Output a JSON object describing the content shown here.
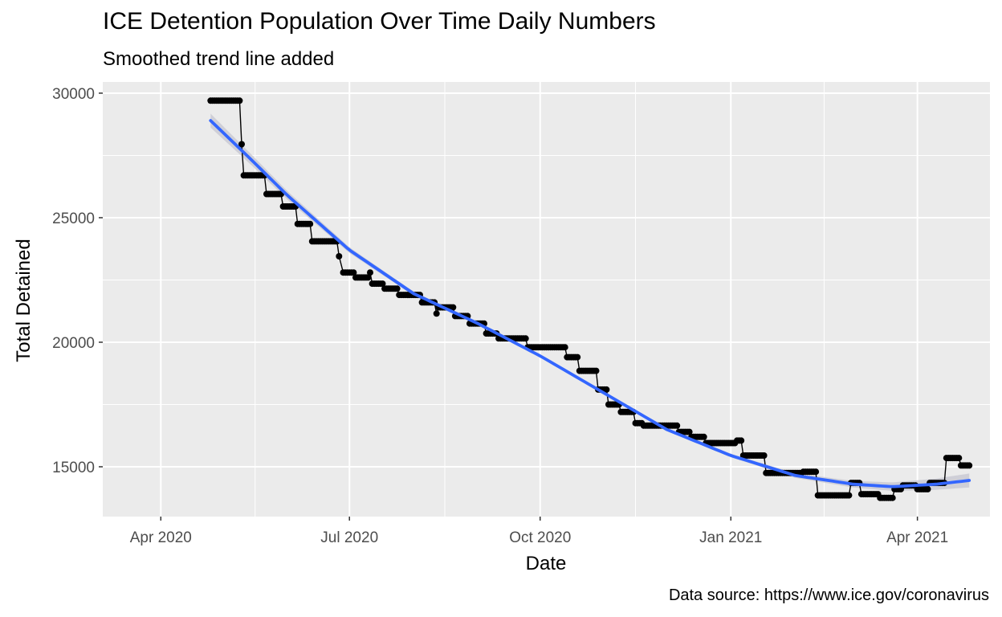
{
  "chart_data": {
    "type": "line",
    "title": "ICE Detention Population Over Time Daily Numbers",
    "subtitle": "Smoothed trend line added",
    "caption": "Data source: https://www.ice.gov/coronavirus",
    "xlabel": "Date",
    "ylabel": "Total Detained",
    "xlim": [
      "2020-03-04",
      "2021-05-06"
    ],
    "ylim": [
      13000,
      30450
    ],
    "x_ticks": [
      {
        "date": "2020-04-01",
        "label": "Apr 2020"
      },
      {
        "date": "2020-07-01",
        "label": "Jul 2020"
      },
      {
        "date": "2020-10-01",
        "label": "Oct 2020"
      },
      {
        "date": "2021-01-01",
        "label": "Jan 2021"
      },
      {
        "date": "2021-04-01",
        "label": "Apr 2021"
      }
    ],
    "y_ticks": [
      15000,
      20000,
      25000,
      30000
    ],
    "grid": true,
    "colors": {
      "panel": "#ebebeb",
      "grid": "#ffffff",
      "observed": "#000000",
      "trend": "#3366ff",
      "ribbon": "#c8c8d2"
    },
    "series": [
      {
        "kind": "observed",
        "data": [
          [
            "2020-04-25",
            29700
          ],
          [
            "2020-05-09",
            29700
          ],
          [
            "2020-05-10",
            27950
          ],
          [
            "2020-05-11",
            26700
          ],
          [
            "2020-05-21",
            26700
          ],
          [
            "2020-05-22",
            25950
          ],
          [
            "2020-05-29",
            25950
          ],
          [
            "2020-05-30",
            25450
          ],
          [
            "2020-06-05",
            25450
          ],
          [
            "2020-06-06",
            24750
          ],
          [
            "2020-06-12",
            24750
          ],
          [
            "2020-06-13",
            24050
          ],
          [
            "2020-06-25",
            24050
          ],
          [
            "2020-06-26",
            23450
          ],
          [
            "2020-06-28",
            22800
          ],
          [
            "2020-07-03",
            22800
          ],
          [
            "2020-07-04",
            22600
          ],
          [
            "2020-07-10",
            22600
          ],
          [
            "2020-07-11",
            22800
          ],
          [
            "2020-07-12",
            22350
          ],
          [
            "2020-07-17",
            22350
          ],
          [
            "2020-07-18",
            22150
          ],
          [
            "2020-07-24",
            22150
          ],
          [
            "2020-07-25",
            21900
          ],
          [
            "2020-08-04",
            21900
          ],
          [
            "2020-08-05",
            21600
          ],
          [
            "2020-08-11",
            21600
          ],
          [
            "2020-08-12",
            21150
          ],
          [
            "2020-08-13",
            21400
          ],
          [
            "2020-08-20",
            21400
          ],
          [
            "2020-08-21",
            21050
          ],
          [
            "2020-08-27",
            21050
          ],
          [
            "2020-08-28",
            20750
          ],
          [
            "2020-09-04",
            20750
          ],
          [
            "2020-09-05",
            20350
          ],
          [
            "2020-09-10",
            20350
          ],
          [
            "2020-09-11",
            20150
          ],
          [
            "2020-09-24",
            20150
          ],
          [
            "2020-09-25",
            19800
          ],
          [
            "2020-10-13",
            19800
          ],
          [
            "2020-10-14",
            19400
          ],
          [
            "2020-10-19",
            19400
          ],
          [
            "2020-10-20",
            18850
          ],
          [
            "2020-10-28",
            18850
          ],
          [
            "2020-10-29",
            18100
          ],
          [
            "2020-11-02",
            18100
          ],
          [
            "2020-11-03",
            17500
          ],
          [
            "2020-11-08",
            17500
          ],
          [
            "2020-11-09",
            17200
          ],
          [
            "2020-11-15",
            17200
          ],
          [
            "2020-11-16",
            16750
          ],
          [
            "2020-11-19",
            16750
          ],
          [
            "2020-11-20",
            16650
          ],
          [
            "2020-12-06",
            16650
          ],
          [
            "2020-12-07",
            16400
          ],
          [
            "2020-12-12",
            16400
          ],
          [
            "2020-12-13",
            16200
          ],
          [
            "2020-12-19",
            16200
          ],
          [
            "2020-12-20",
            15950
          ],
          [
            "2021-01-03",
            15950
          ],
          [
            "2021-01-04",
            16050
          ],
          [
            "2021-01-06",
            16050
          ],
          [
            "2021-01-07",
            15450
          ],
          [
            "2021-01-17",
            15450
          ],
          [
            "2021-01-18",
            14750
          ],
          [
            "2021-02-04",
            14750
          ],
          [
            "2021-02-05",
            14800
          ],
          [
            "2021-02-11",
            14800
          ],
          [
            "2021-02-12",
            13850
          ],
          [
            "2021-02-27",
            13850
          ],
          [
            "2021-02-28",
            14350
          ],
          [
            "2021-03-04",
            14350
          ],
          [
            "2021-03-05",
            13900
          ],
          [
            "2021-03-13",
            13900
          ],
          [
            "2021-03-14",
            13750
          ],
          [
            "2021-03-20",
            13750
          ],
          [
            "2021-03-21",
            14100
          ],
          [
            "2021-03-24",
            14100
          ],
          [
            "2021-03-25",
            14250
          ],
          [
            "2021-03-31",
            14250
          ],
          [
            "2021-04-01",
            14100
          ],
          [
            "2021-04-06",
            14100
          ],
          [
            "2021-04-07",
            14350
          ],
          [
            "2021-04-14",
            14350
          ],
          [
            "2021-04-15",
            15350
          ],
          [
            "2021-04-21",
            15350
          ],
          [
            "2021-04-22",
            15050
          ],
          [
            "2021-04-26",
            15050
          ]
        ]
      },
      {
        "kind": "trend",
        "data": [
          [
            "2020-04-25",
            28900
          ],
          [
            "2020-05-15",
            27300
          ],
          [
            "2020-06-01",
            25900
          ],
          [
            "2020-07-01",
            23700
          ],
          [
            "2020-08-01",
            21950
          ],
          [
            "2020-09-01",
            20750
          ],
          [
            "2020-10-01",
            19450
          ],
          [
            "2020-11-01",
            17950
          ],
          [
            "2020-12-01",
            16500
          ],
          [
            "2021-01-01",
            15450
          ],
          [
            "2021-02-01",
            14650
          ],
          [
            "2021-03-01",
            14300
          ],
          [
            "2021-03-20",
            14200
          ],
          [
            "2021-04-10",
            14300
          ],
          [
            "2021-04-26",
            14450
          ]
        ]
      }
    ]
  }
}
